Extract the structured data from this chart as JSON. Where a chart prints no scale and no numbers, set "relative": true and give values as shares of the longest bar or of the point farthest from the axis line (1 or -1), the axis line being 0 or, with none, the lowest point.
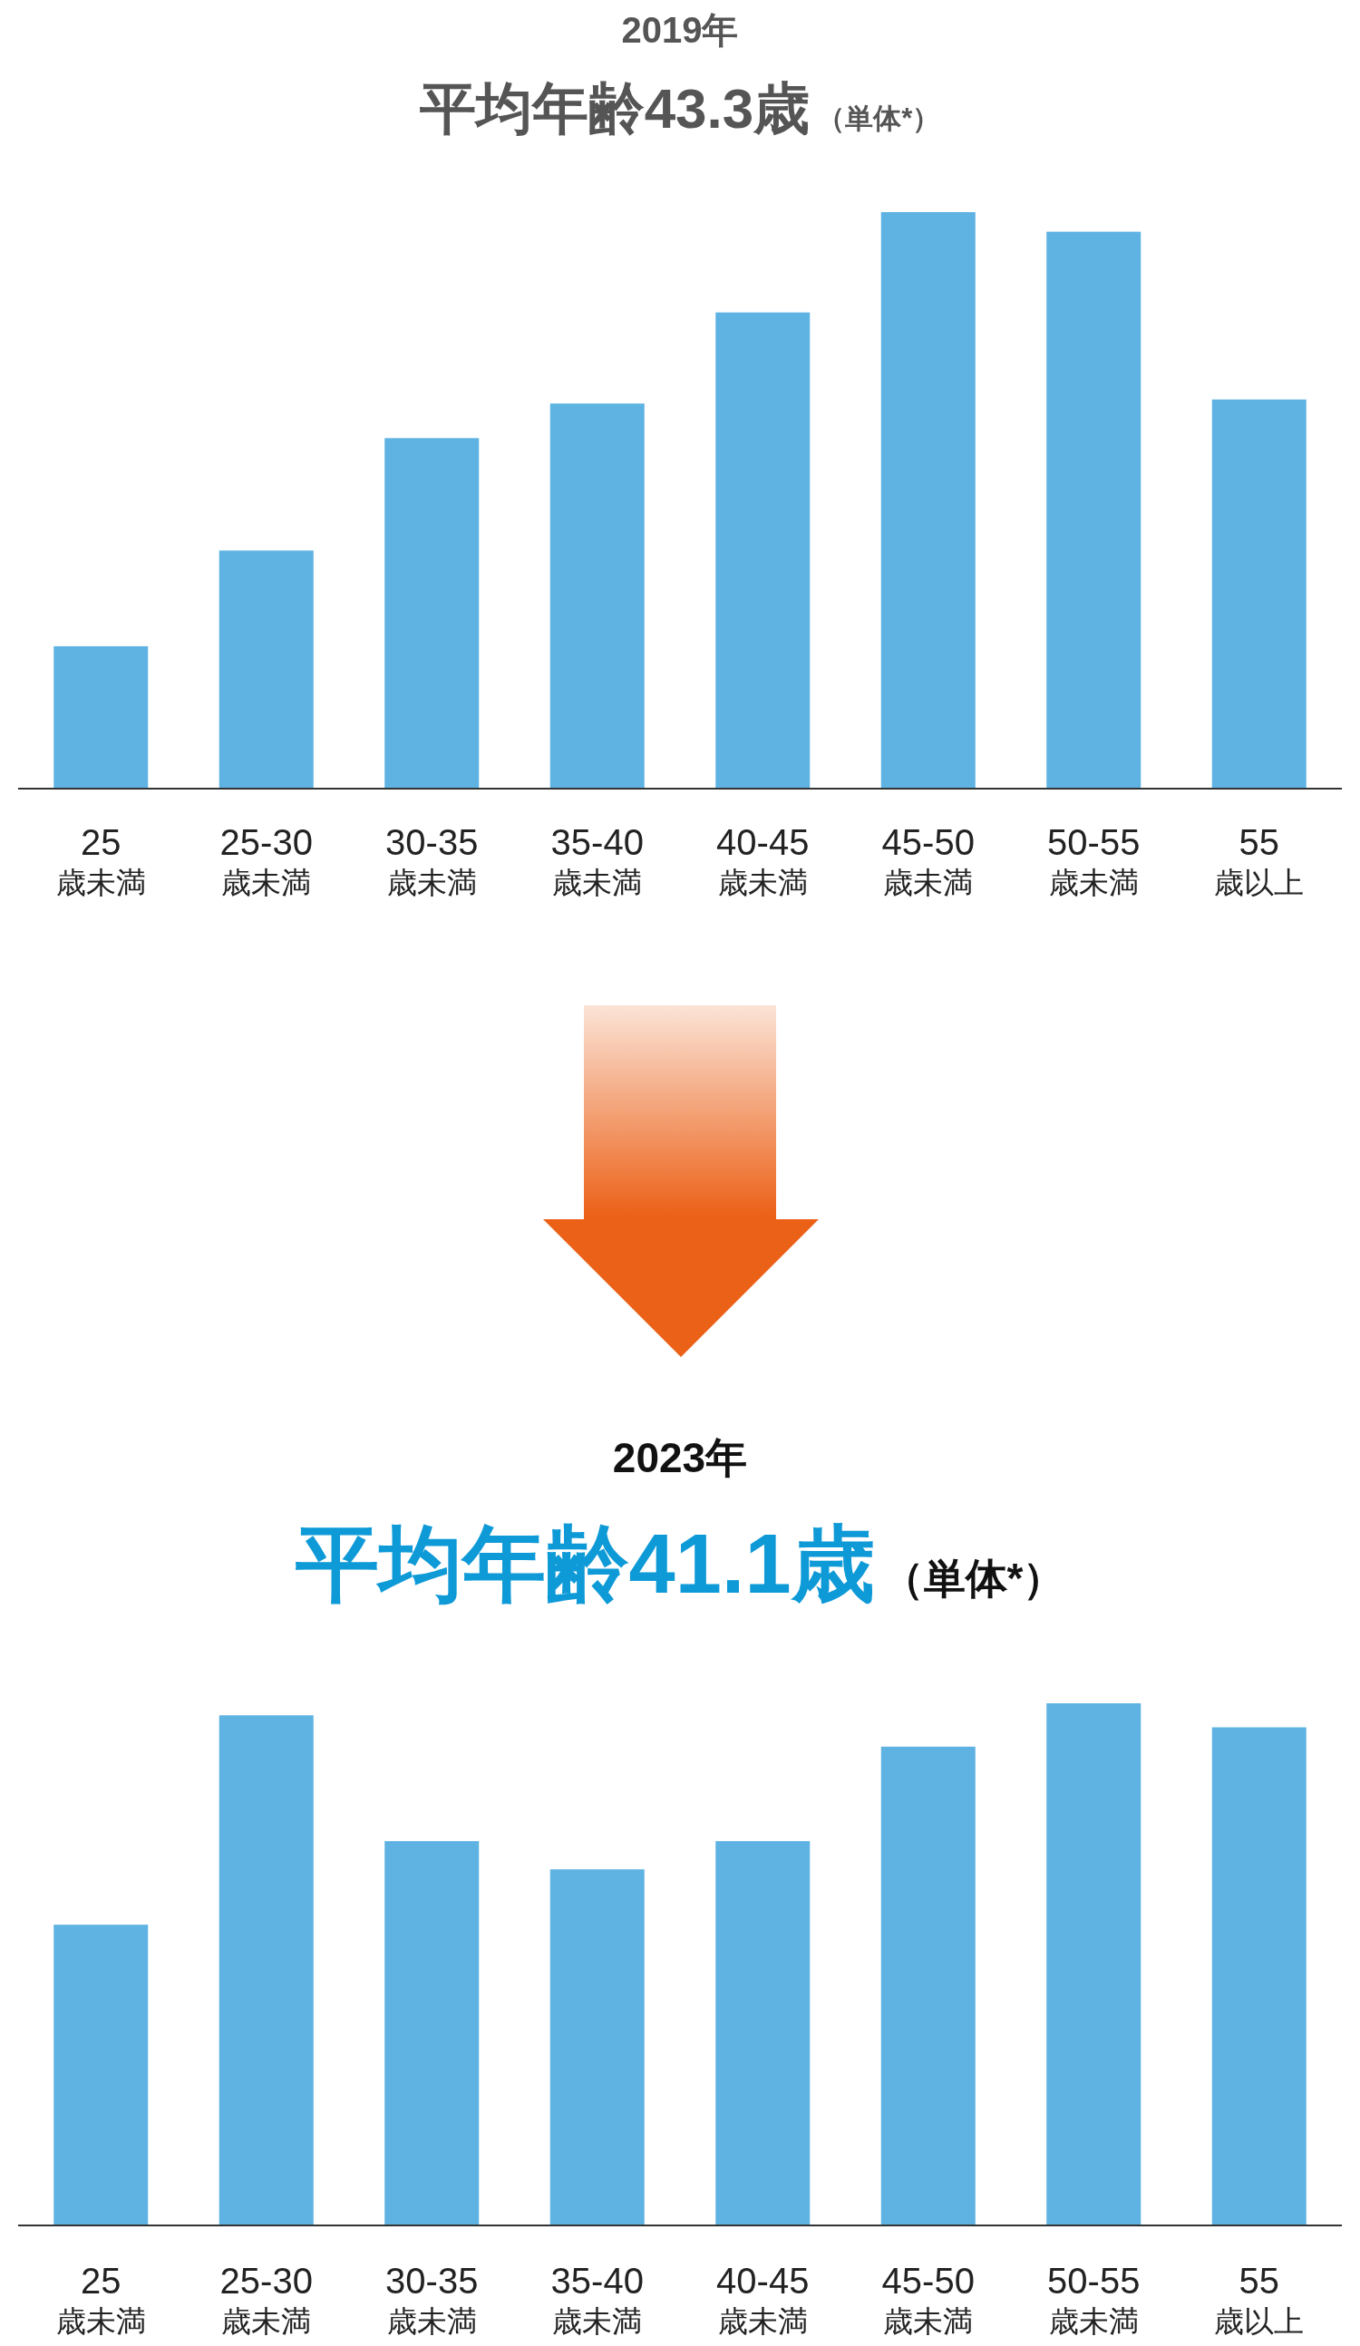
{
  "chart_data": [
    {
      "type": "bar",
      "subtitle": "2019年",
      "title": "平均年齢43.3歳",
      "annotations": [
        "（単体*）"
      ],
      "relative": true,
      "color": "#5fb3e3",
      "categories": [
        "25 歳未満",
        "25-30 歳未満",
        "30-35 歳未満",
        "35-40 歳未満",
        "40-45 歳未満",
        "45-50 歳未満",
        "50-55 歳未満",
        "55 歳以上"
      ],
      "values": [
        0.247,
        0.413,
        0.608,
        0.668,
        0.826,
        1,
        0.966,
        0.675
      ]
    },
    {
      "type": "bar",
      "subtitle": "2023年",
      "title": "平均年齢41.1歳",
      "annotations": [
        "（単体*）"
      ],
      "relative": true,
      "color": "#5fb3e3",
      "categories": [
        "25 歳未満",
        "25-30 歳未満",
        "30-35 歳未満",
        "35-40 歳未満",
        "40-45 歳未満",
        "45-50 歳未満",
        "50-55 歳未満",
        "55 歳以上"
      ],
      "values": [
        0.576,
        0.977,
        0.736,
        0.682,
        0.736,
        0.917,
        1,
        0.954
      ]
    }
  ]
}
